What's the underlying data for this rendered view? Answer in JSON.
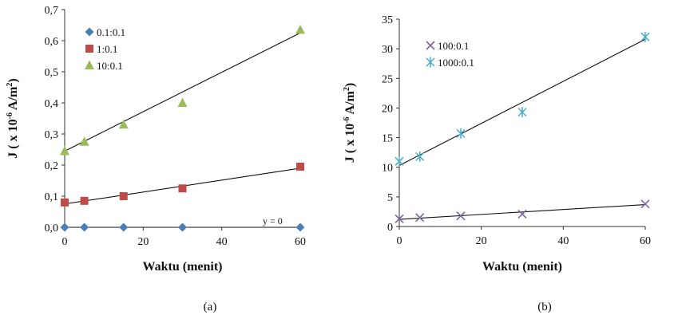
{
  "chart_data": [
    {
      "type": "scatter",
      "panel_label": "(a)",
      "xlabel": "Waktu (menit)",
      "ylabel": "J ( x 10-6 A/m2)",
      "ylabel_parts": {
        "pre": "J ( x 10",
        "exp": "-6",
        "mid": " A/m",
        "sq": "2",
        "post": ")"
      },
      "xlim": [
        0,
        60
      ],
      "ylim": [
        0,
        0.7
      ],
      "x_ticks": [
        "0",
        "20",
        "40",
        "60"
      ],
      "y_ticks": [
        "0,0",
        "0,1",
        "0,2",
        "0,3",
        "0,4",
        "0,5",
        "0,6",
        "0,7"
      ],
      "grid": false,
      "legend_position": "top-left",
      "annotation": "y = 0",
      "series": [
        {
          "name": "0.1:0.1",
          "marker": "diamond",
          "color": "#4a7ebb",
          "x": [
            0,
            5,
            15,
            30,
            60
          ],
          "y": [
            0.0,
            0.0,
            0.0,
            0.0,
            0.0
          ],
          "trend": [
            0.0,
            0.0
          ]
        },
        {
          "name": "1:0.1",
          "marker": "square",
          "color": "#be4b48",
          "x": [
            0,
            5,
            15,
            30,
            60
          ],
          "y": [
            0.08,
            0.085,
            0.1,
            0.125,
            0.195
          ],
          "trend": [
            0.075,
            0.19
          ]
        },
        {
          "name": "10:0.1",
          "marker": "triangle",
          "color": "#9bbb59",
          "x": [
            0,
            5,
            15,
            30,
            60
          ],
          "y": [
            0.245,
            0.275,
            0.33,
            0.4,
            0.635
          ],
          "trend": [
            0.245,
            0.625
          ]
        }
      ]
    },
    {
      "type": "scatter",
      "panel_label": "(b)",
      "xlabel": "Waktu (menit)",
      "ylabel": "J ( x 10-6 A/m2)",
      "ylabel_parts": {
        "pre": "J ( x 10",
        "exp": "-6",
        "mid": " A/m",
        "sq": "2",
        "post": ")"
      },
      "xlim": [
        0,
        60
      ],
      "ylim": [
        0,
        35
      ],
      "x_ticks": [
        "0",
        "20",
        "40",
        "60"
      ],
      "y_ticks": [
        "0",
        "5",
        "10",
        "15",
        "20",
        "25",
        "30",
        "35"
      ],
      "grid": false,
      "legend_position": "top-left",
      "series": [
        {
          "name": "100:0.1",
          "marker": "x",
          "color": "#8064a2",
          "x": [
            0,
            5,
            15,
            30,
            60
          ],
          "y": [
            1.3,
            1.5,
            1.8,
            2.1,
            3.8
          ],
          "trend": [
            1.2,
            3.7
          ]
        },
        {
          "name": "1000:0.1",
          "marker": "asterisk",
          "color": "#4bacc6",
          "x": [
            0,
            5,
            15,
            30,
            60
          ],
          "y": [
            11.0,
            11.8,
            15.7,
            19.3,
            32.0
          ],
          "trend": [
            10.3,
            31.6
          ]
        }
      ]
    }
  ]
}
